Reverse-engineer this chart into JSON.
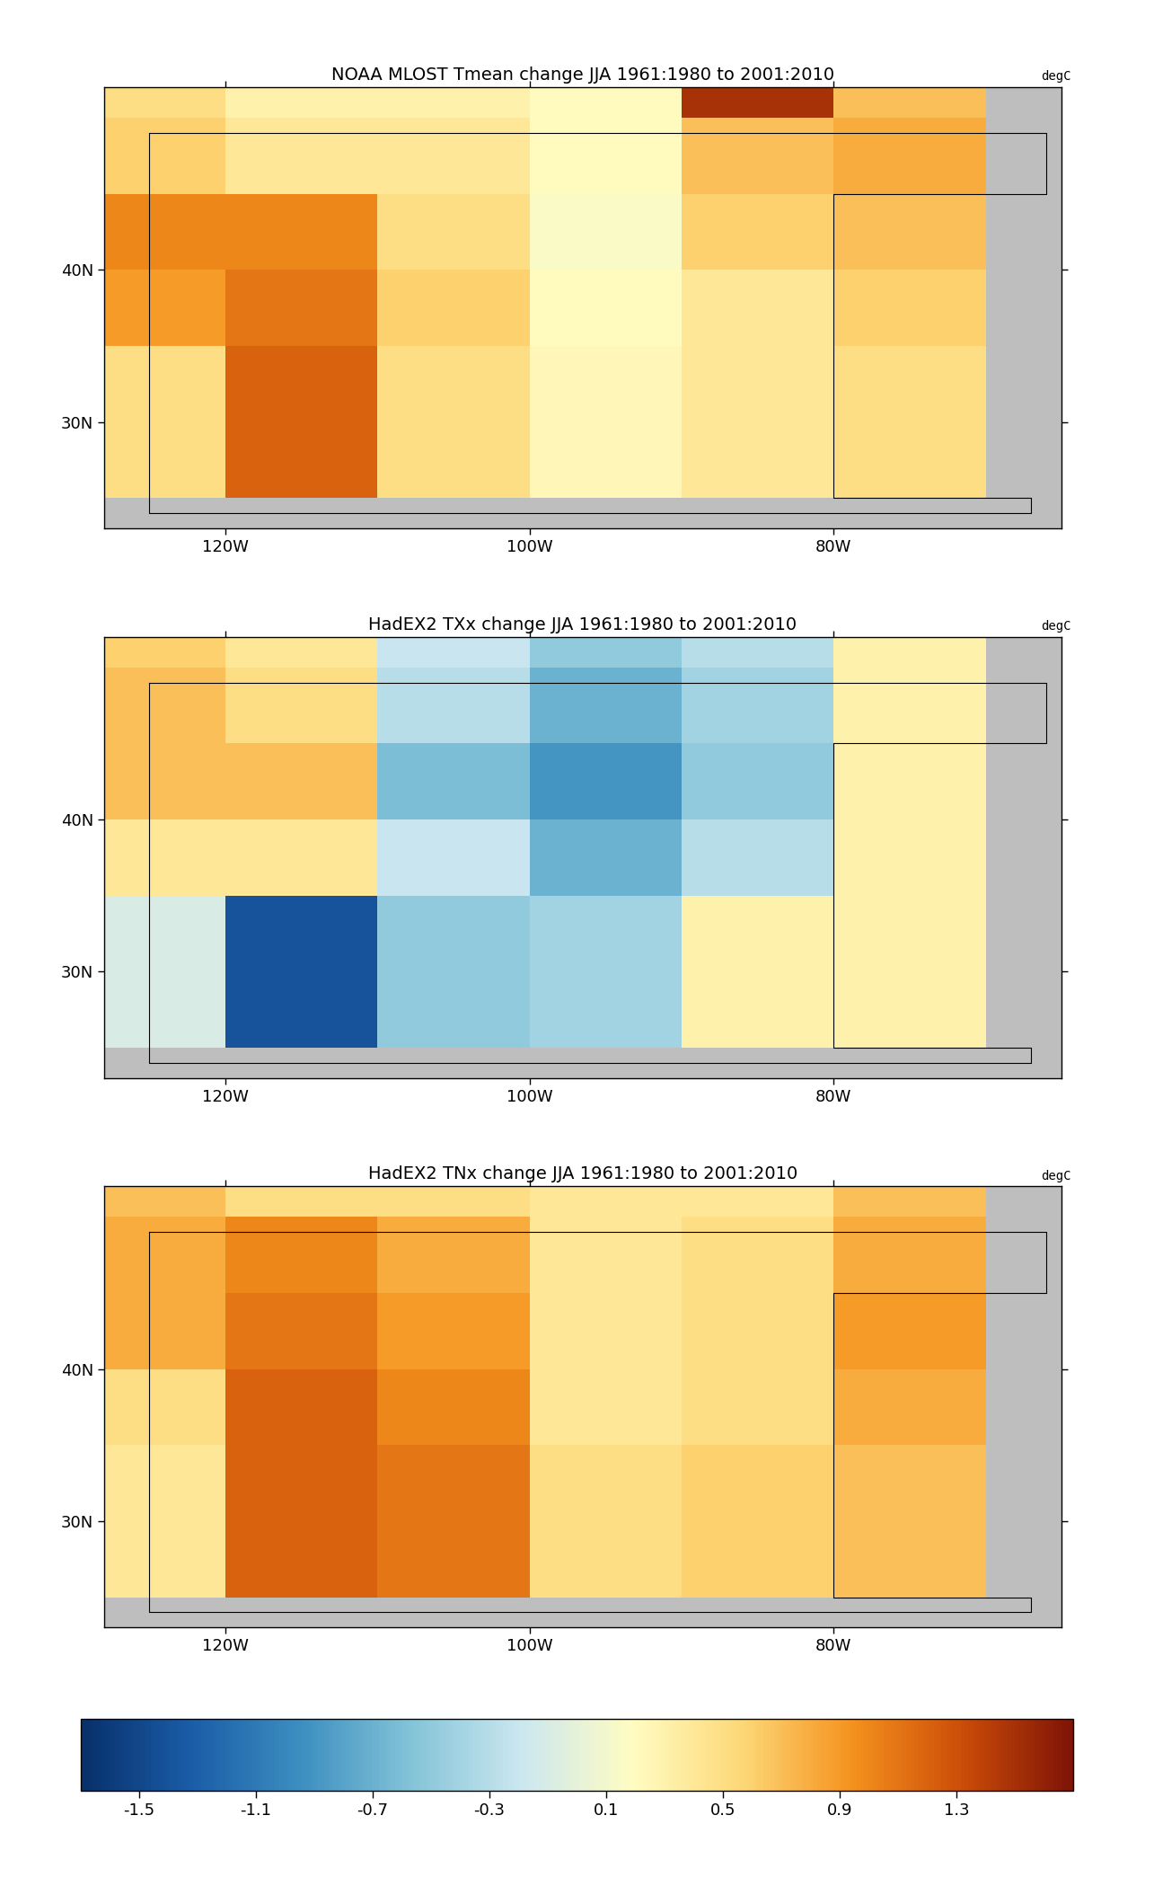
{
  "title1": "NOAA MLOST Tmean change JJA 1961:1980 to 2001:2010",
  "title2": "HadEX2 TXx change JJA 1961:1980 to 2001:2010",
  "title3": "HadEX2 TNx change JJA 1961:1980 to 2001:2010",
  "unit_label": "degC",
  "colorbar_ticks": [
    -1.5,
    -1.1,
    -0.7,
    -0.3,
    0.1,
    0.5,
    0.9,
    1.3
  ],
  "vmin": -1.7,
  "vmax": 1.7,
  "lon_min": -128,
  "lon_max": -65,
  "lat_min": 23,
  "lat_max": 52,
  "lon_ticks": [
    -120,
    -100,
    -80
  ],
  "lat_ticks": [
    30,
    40
  ],
  "background_color": "#BEBEBE",
  "cmap_colors": [
    "#08306b",
    "#1a5da8",
    "#3d8fc0",
    "#84c4d8",
    "#cce7f0",
    "#fffcc2",
    "#fdd877",
    "#f5921e",
    "#cc4d08",
    "#7f1407"
  ],
  "map1_data": {
    "grid_lons": [
      -125,
      -115,
      -105,
      -95,
      -85,
      -75,
      -125,
      -115,
      -105,
      -95,
      -85,
      -75,
      -125,
      -115,
      -105,
      -95,
      -85,
      -75,
      -125,
      -115,
      -105,
      -95,
      -85,
      -75,
      -125,
      -115,
      -105,
      -95,
      -85,
      -75
    ],
    "grid_lats": [
      50,
      50,
      50,
      50,
      50,
      50,
      45,
      45,
      45,
      45,
      45,
      45,
      40,
      40,
      40,
      40,
      40,
      40,
      35,
      35,
      35,
      35,
      35,
      35,
      30,
      30,
      30,
      30,
      30,
      30
    ],
    "grid_vals": [
      0.5,
      0.3,
      0.3,
      0.2,
      1.5,
      0.7,
      0.6,
      0.4,
      0.4,
      0.2,
      0.7,
      0.8,
      1.0,
      1.0,
      0.5,
      0.15,
      0.6,
      0.7,
      0.9,
      1.1,
      0.6,
      0.2,
      0.4,
      0.6,
      0.5,
      1.2,
      0.5,
      0.25,
      0.4,
      0.5
    ]
  },
  "map2_data": {
    "grid_lons": [
      -125,
      -115,
      -105,
      -95,
      -85,
      -75,
      -125,
      -115,
      -105,
      -95,
      -85,
      -75,
      -125,
      -115,
      -105,
      -95,
      -85,
      -75,
      -125,
      -115,
      -105,
      -95,
      -85,
      -75,
      -125,
      -115,
      -105,
      -95,
      -85,
      -75
    ],
    "grid_lats": [
      50,
      50,
      50,
      50,
      50,
      50,
      45,
      45,
      45,
      45,
      45,
      45,
      40,
      40,
      40,
      40,
      40,
      40,
      35,
      35,
      35,
      35,
      35,
      35,
      30,
      30,
      30,
      30,
      30,
      30
    ],
    "grid_vals": [
      0.6,
      0.4,
      -0.2,
      -0.5,
      -0.3,
      0.3,
      0.7,
      0.5,
      -0.3,
      -0.7,
      -0.4,
      0.3,
      0.7,
      0.7,
      -0.6,
      -0.9,
      -0.5,
      0.3,
      0.4,
      0.4,
      -0.2,
      -0.7,
      -0.3,
      0.3,
      -0.1,
      -1.4,
      -0.5,
      -0.4,
      0.3,
      0.3
    ]
  },
  "map3_data": {
    "grid_lons": [
      -125,
      -115,
      -105,
      -95,
      -85,
      -75,
      -125,
      -115,
      -105,
      -95,
      -85,
      -75,
      -125,
      -115,
      -105,
      -95,
      -85,
      -75,
      -125,
      -115,
      -105,
      -95,
      -85,
      -75,
      -125,
      -115,
      -105,
      -95,
      -85,
      -75
    ],
    "grid_lats": [
      50,
      50,
      50,
      50,
      50,
      50,
      45,
      45,
      45,
      45,
      45,
      45,
      40,
      40,
      40,
      40,
      40,
      40,
      35,
      35,
      35,
      35,
      35,
      35,
      30,
      30,
      30,
      30,
      30,
      30
    ],
    "grid_vals": [
      0.7,
      0.5,
      0.5,
      0.4,
      0.4,
      0.7,
      0.8,
      1.0,
      0.8,
      0.4,
      0.5,
      0.8,
      0.8,
      1.1,
      0.9,
      0.4,
      0.5,
      0.9,
      0.5,
      1.2,
      1.0,
      0.4,
      0.5,
      0.8,
      0.4,
      1.2,
      1.1,
      0.5,
      0.6,
      0.7
    ]
  }
}
